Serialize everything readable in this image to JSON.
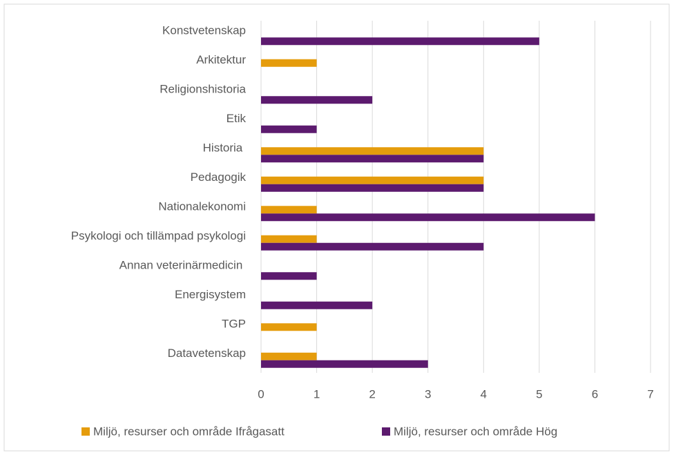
{
  "chart_data": {
    "type": "bar",
    "orientation": "horizontal",
    "categories": [
      "Konstvetenskap",
      "Arkitektur",
      "Religionshistoria",
      "Etik",
      "Historia ",
      "Pedagogik",
      "Nationalekonomi",
      "Psykologi och tillämpad psykologi",
      "Annan veterinärmedicin ",
      "Energisystem",
      "TGP",
      "Datavetenskap"
    ],
    "series": [
      {
        "name": "Miljö, resurser och område Ifrågasatt",
        "color": "#e59c0c",
        "values": [
          0,
          1,
          0,
          0,
          4,
          4,
          1,
          1,
          0,
          0,
          1,
          1
        ]
      },
      {
        "name": "Miljö, resurser och område Hög",
        "color": "#5c1a6e",
        "values": [
          5,
          0,
          2,
          1,
          4,
          4,
          6,
          4,
          1,
          2,
          0,
          3
        ]
      }
    ],
    "xlim": [
      0,
      7
    ],
    "xticks": [
      0,
      1,
      2,
      3,
      4,
      5,
      6,
      7
    ],
    "grid": true,
    "legend": "bottom"
  }
}
